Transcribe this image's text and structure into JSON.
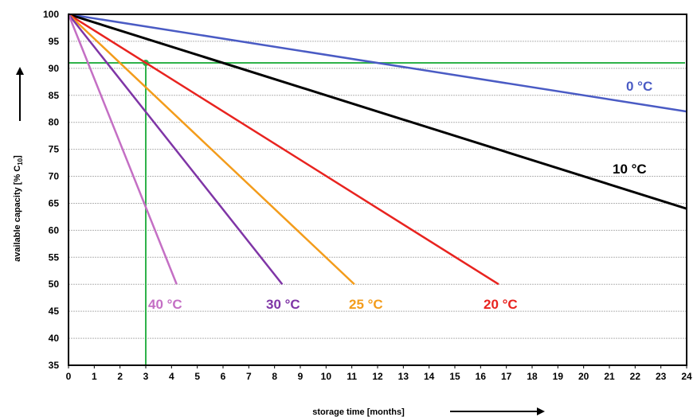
{
  "chart_data": {
    "type": "line",
    "title": "",
    "xlabel": "storage time [months]",
    "ylabel": {
      "prefix": "available capacity [% C",
      "subscript": "10",
      "suffix": "]"
    },
    "xlim": [
      0,
      24
    ],
    "ylim": [
      35,
      100
    ],
    "x_ticks": [
      "0",
      "1",
      "2",
      "3",
      "4",
      "5",
      "6",
      "7",
      "8",
      "9",
      "10",
      "11",
      "12",
      "13",
      "14",
      "15",
      "16",
      "17",
      "18",
      "19",
      "20",
      "21",
      "22",
      "23",
      "24"
    ],
    "y_ticks": [
      "35",
      "40",
      "45",
      "50",
      "55",
      "60",
      "65",
      "70",
      "75",
      "80",
      "85",
      "90",
      "95",
      "100"
    ],
    "grid": true,
    "series": [
      {
        "name": "0 °C",
        "color": "#4a5bc4",
        "points": [
          [
            0,
            100
          ],
          [
            24,
            82
          ]
        ]
      },
      {
        "name": "10 °C",
        "color": "#000000",
        "points": [
          [
            0,
            100
          ],
          [
            24,
            64
          ]
        ]
      },
      {
        "name": "20 °C",
        "color": "#e8231f",
        "points": [
          [
            0,
            100
          ],
          [
            16.7,
            50
          ]
        ]
      },
      {
        "name": "25 °C",
        "color": "#f39c1b",
        "points": [
          [
            0,
            100
          ],
          [
            11.1,
            50
          ]
        ]
      },
      {
        "name": "30 °C",
        "color": "#7f35a6",
        "points": [
          [
            0,
            100
          ],
          [
            8.3,
            50
          ]
        ]
      },
      {
        "name": "40 °C",
        "color": "#c46fc4",
        "points": [
          [
            0,
            100
          ],
          [
            4.2,
            50
          ]
        ]
      }
    ],
    "annotations": {
      "color": "#2fb24a",
      "horizontal_line_y": 91,
      "vertical_line_x": 3,
      "marker_point": [
        3,
        91
      ]
    }
  }
}
